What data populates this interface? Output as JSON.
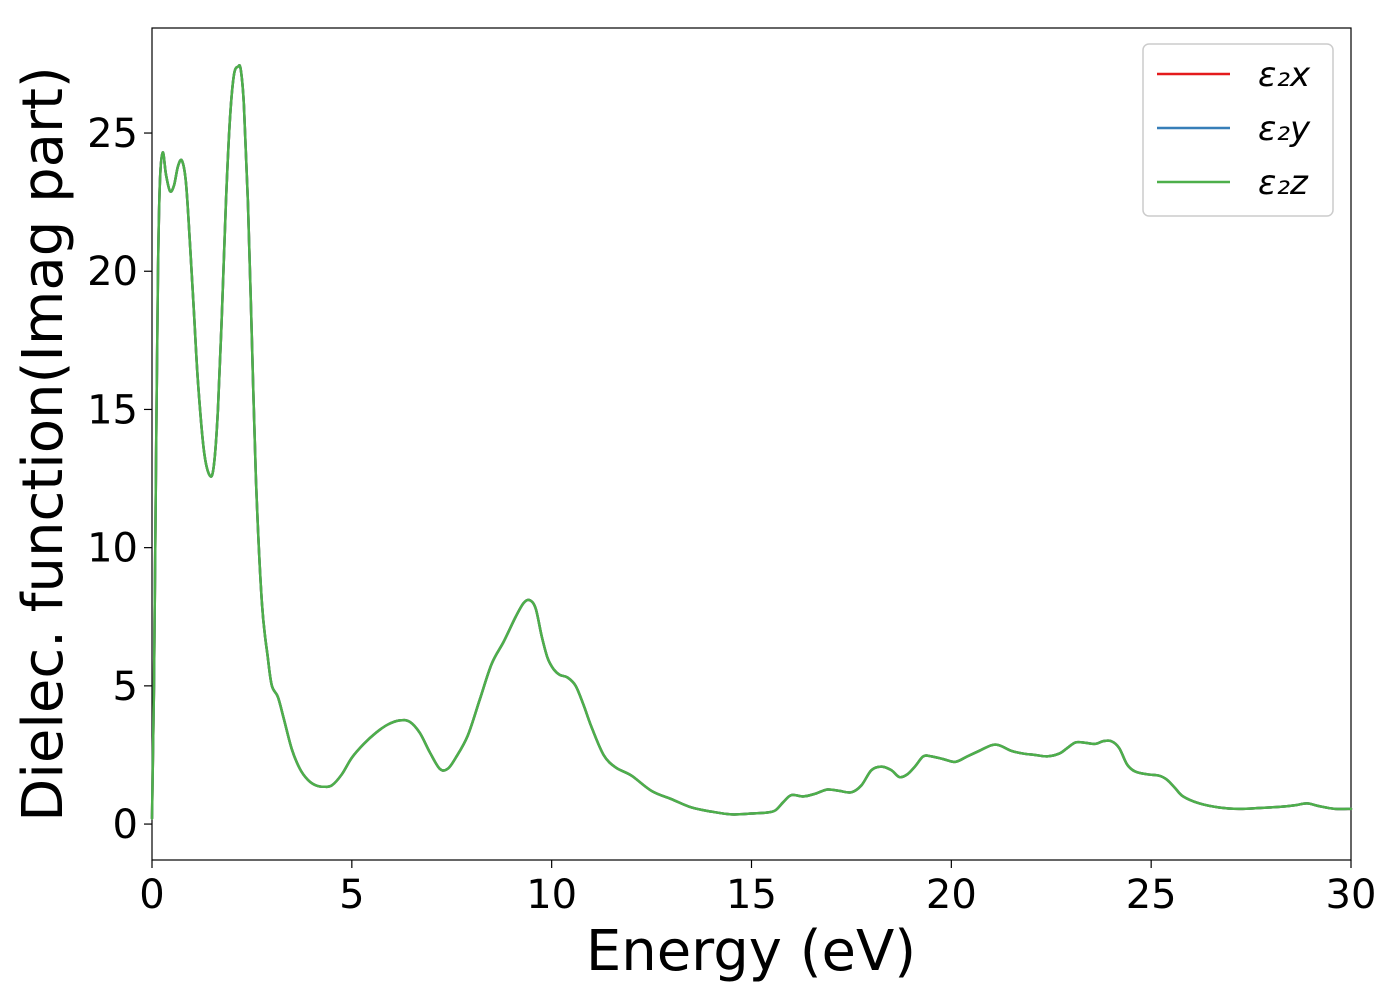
{
  "chart_data": {
    "type": "line",
    "title": "",
    "xlabel": "Energy (eV)",
    "ylabel": "Dielec. function(Imag part)",
    "xlim": [
      0,
      30
    ],
    "ylim": [
      -1.3,
      28.8
    ],
    "xticks": [
      0,
      5,
      10,
      15,
      20,
      25,
      30
    ],
    "yticks": [
      0,
      5,
      10,
      15,
      20,
      25
    ],
    "grid": false,
    "legend_position": "top-right",
    "x": [
      0,
      0.05,
      0.1,
      0.15,
      0.2,
      0.27,
      0.35,
      0.45,
      0.55,
      0.65,
      0.75,
      0.85,
      0.95,
      1.05,
      1.15,
      1.3,
      1.45,
      1.55,
      1.65,
      1.75,
      1.85,
      1.95,
      2.05,
      2.15,
      2.22,
      2.3,
      2.4,
      2.5,
      2.6,
      2.75,
      2.9,
      3.0,
      3.15,
      3.3,
      3.5,
      3.7,
      3.9,
      4.1,
      4.3,
      4.5,
      4.75,
      5.0,
      5.3,
      5.6,
      5.9,
      6.2,
      6.45,
      6.7,
      6.95,
      7.2,
      7.4,
      7.6,
      7.9,
      8.2,
      8.5,
      8.8,
      9.1,
      9.3,
      9.45,
      9.6,
      9.75,
      9.9,
      10.05,
      10.2,
      10.4,
      10.6,
      10.8,
      11.0,
      11.3,
      11.6,
      12.0,
      12.5,
      13.0,
      13.5,
      14.0,
      14.5,
      15.0,
      15.4,
      15.6,
      15.8,
      16.0,
      16.3,
      16.6,
      16.9,
      17.2,
      17.5,
      17.75,
      18.0,
      18.25,
      18.5,
      18.7,
      18.9,
      19.1,
      19.3,
      19.5,
      19.8,
      20.1,
      20.4,
      20.7,
      21.0,
      21.2,
      21.5,
      21.8,
      22.1,
      22.4,
      22.7,
      22.9,
      23.1,
      23.3,
      23.6,
      23.8,
      24.0,
      24.2,
      24.4,
      24.6,
      24.9,
      25.2,
      25.4,
      25.6,
      25.8,
      26.2,
      26.7,
      27.2,
      27.7,
      28.2,
      28.6,
      28.9,
      29.2,
      29.6,
      30.0
    ],
    "series": [
      {
        "name": "ε₂x",
        "color": "#e41a1c",
        "values": [
          0.2,
          5.0,
          13.0,
          20.0,
          23.3,
          24.3,
          23.5,
          22.9,
          23.1,
          23.8,
          24.0,
          23.2,
          21.0,
          18.5,
          16.0,
          13.5,
          12.6,
          13.0,
          15.0,
          18.5,
          22.5,
          25.5,
          27.1,
          27.4,
          27.3,
          26.0,
          22.5,
          17.5,
          12.5,
          8.0,
          6.0,
          5.0,
          4.6,
          3.8,
          2.7,
          2.0,
          1.6,
          1.4,
          1.35,
          1.4,
          1.8,
          2.4,
          2.9,
          3.3,
          3.6,
          3.75,
          3.7,
          3.3,
          2.6,
          2.0,
          2.0,
          2.4,
          3.2,
          4.5,
          5.8,
          6.6,
          7.5,
          8.0,
          8.1,
          7.8,
          6.8,
          6.0,
          5.6,
          5.4,
          5.3,
          5.0,
          4.3,
          3.5,
          2.5,
          2.05,
          1.75,
          1.2,
          0.9,
          0.6,
          0.45,
          0.35,
          0.38,
          0.42,
          0.5,
          0.8,
          1.05,
          1.0,
          1.1,
          1.25,
          1.2,
          1.15,
          1.4,
          1.95,
          2.08,
          1.95,
          1.7,
          1.8,
          2.1,
          2.45,
          2.45,
          2.35,
          2.25,
          2.45,
          2.65,
          2.85,
          2.85,
          2.65,
          2.55,
          2.5,
          2.45,
          2.55,
          2.75,
          2.95,
          2.95,
          2.9,
          3.0,
          3.0,
          2.75,
          2.15,
          1.9,
          1.8,
          1.75,
          1.6,
          1.3,
          1.0,
          0.75,
          0.6,
          0.55,
          0.58,
          0.62,
          0.68,
          0.75,
          0.65,
          0.55,
          0.55
        ]
      },
      {
        "name": "ε₂y",
        "color": "#377eb8",
        "values": [
          0.2,
          5.0,
          13.0,
          20.0,
          23.3,
          24.3,
          23.5,
          22.9,
          23.1,
          23.8,
          24.0,
          23.2,
          21.0,
          18.5,
          16.0,
          13.5,
          12.6,
          13.0,
          15.0,
          18.5,
          22.5,
          25.5,
          27.1,
          27.4,
          27.3,
          26.0,
          22.5,
          17.5,
          12.5,
          8.0,
          6.0,
          5.0,
          4.6,
          3.8,
          2.7,
          2.0,
          1.6,
          1.4,
          1.35,
          1.4,
          1.8,
          2.4,
          2.9,
          3.3,
          3.6,
          3.75,
          3.7,
          3.3,
          2.6,
          2.0,
          2.0,
          2.4,
          3.2,
          4.5,
          5.8,
          6.6,
          7.5,
          8.0,
          8.1,
          7.8,
          6.8,
          6.0,
          5.6,
          5.4,
          5.3,
          5.0,
          4.3,
          3.5,
          2.5,
          2.05,
          1.75,
          1.2,
          0.9,
          0.6,
          0.45,
          0.35,
          0.38,
          0.42,
          0.5,
          0.8,
          1.05,
          1.0,
          1.1,
          1.25,
          1.2,
          1.15,
          1.4,
          1.95,
          2.08,
          1.95,
          1.7,
          1.8,
          2.1,
          2.45,
          2.45,
          2.35,
          2.25,
          2.45,
          2.65,
          2.85,
          2.85,
          2.65,
          2.55,
          2.5,
          2.45,
          2.55,
          2.75,
          2.95,
          2.95,
          2.9,
          3.0,
          3.0,
          2.75,
          2.15,
          1.9,
          1.8,
          1.75,
          1.6,
          1.3,
          1.0,
          0.75,
          0.6,
          0.55,
          0.58,
          0.62,
          0.68,
          0.75,
          0.65,
          0.55,
          0.55
        ]
      },
      {
        "name": "ε₂z",
        "color": "#4daf4a",
        "values": [
          0.2,
          5.0,
          13.0,
          20.0,
          23.3,
          24.3,
          23.5,
          22.9,
          23.1,
          23.8,
          24.0,
          23.2,
          21.0,
          18.5,
          16.0,
          13.5,
          12.6,
          13.0,
          15.0,
          18.5,
          22.5,
          25.5,
          27.1,
          27.4,
          27.3,
          26.0,
          22.5,
          17.5,
          12.5,
          8.0,
          6.0,
          5.0,
          4.6,
          3.8,
          2.7,
          2.0,
          1.6,
          1.4,
          1.35,
          1.4,
          1.8,
          2.4,
          2.9,
          3.3,
          3.6,
          3.75,
          3.7,
          3.3,
          2.6,
          2.0,
          2.0,
          2.4,
          3.2,
          4.5,
          5.8,
          6.6,
          7.5,
          8.0,
          8.1,
          7.8,
          6.8,
          6.0,
          5.6,
          5.4,
          5.3,
          5.0,
          4.3,
          3.5,
          2.5,
          2.05,
          1.75,
          1.2,
          0.9,
          0.6,
          0.45,
          0.35,
          0.38,
          0.42,
          0.5,
          0.8,
          1.05,
          1.0,
          1.1,
          1.25,
          1.2,
          1.15,
          1.4,
          1.95,
          2.08,
          1.95,
          1.7,
          1.8,
          2.1,
          2.45,
          2.45,
          2.35,
          2.25,
          2.45,
          2.65,
          2.85,
          2.85,
          2.65,
          2.55,
          2.5,
          2.45,
          2.55,
          2.75,
          2.95,
          2.95,
          2.9,
          3.0,
          3.0,
          2.75,
          2.15,
          1.9,
          1.8,
          1.75,
          1.6,
          1.3,
          1.0,
          0.75,
          0.6,
          0.55,
          0.58,
          0.62,
          0.68,
          0.75,
          0.65,
          0.55,
          0.55
        ]
      }
    ]
  }
}
